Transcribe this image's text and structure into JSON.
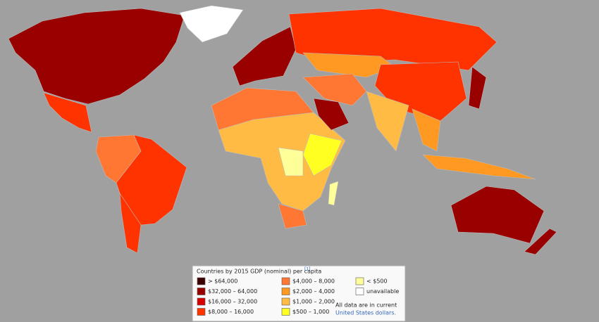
{
  "legend": {
    "title": "Countries by 2015 GDP (nominal) per capita",
    "footnote": "[1]",
    "items": [
      {
        "label": "> $64,000",
        "color": "#3d0000"
      },
      {
        "label": "$32,000 – 64,000",
        "color": "#990000"
      },
      {
        "label": "$16,000 – 32,000",
        "color": "#d60000"
      },
      {
        "label": "$8,000 – 16,000",
        "color": "#ff3300"
      },
      {
        "label": "$4,000 – 8,000",
        "color": "#ff7733"
      },
      {
        "label": "$2,000 – 4,000",
        "color": "#ff9922"
      },
      {
        "label": "$1,000 – 2,000",
        "color": "#ffbb44"
      },
      {
        "label": "$500 – 1,000",
        "color": "#ffff22"
      },
      {
        "label": "< $500",
        "color": "#ffff99"
      },
      {
        "label": "unavailable",
        "color": "#ffffff"
      }
    ],
    "note": "All data are in current",
    "note_link": "United States dollars."
  }
}
